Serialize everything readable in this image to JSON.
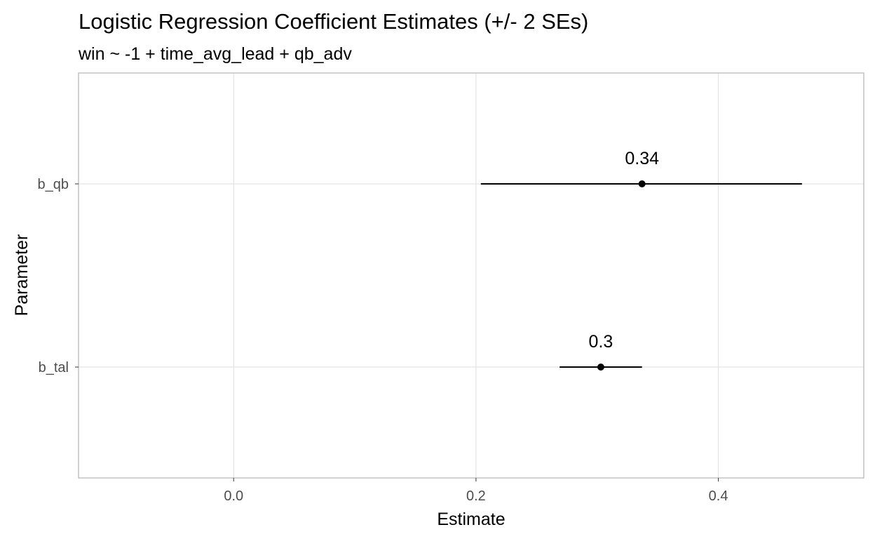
{
  "chart_data": {
    "type": "scatter",
    "title": "Logistic Regression Coefficient Estimates (+/- 2 SEs)",
    "subtitle": "win ~ -1 + time_avg_lead + qb_adv",
    "xlabel": "Estimate",
    "ylabel": "Parameter",
    "xlim": [
      -0.128,
      0.52
    ],
    "x_ticks": [
      0.0,
      0.2,
      0.4
    ],
    "x_tick_labels": [
      "0.0",
      "0.2",
      "0.4"
    ],
    "categories": [
      "b_tal",
      "b_qb"
    ],
    "points": [
      {
        "param": "b_tal",
        "estimate": 0.303,
        "lower": 0.269,
        "upper": 0.337,
        "label": "0.3"
      },
      {
        "param": "b_qb",
        "estimate": 0.337,
        "lower": 0.204,
        "upper": 0.469,
        "label": "0.34"
      }
    ],
    "grid": true,
    "legend": "none",
    "colors": {
      "point": "#000000",
      "grid": "#dedede",
      "panel_border": "#b3b3b3",
      "tick_text": "#4d4d4d"
    }
  }
}
